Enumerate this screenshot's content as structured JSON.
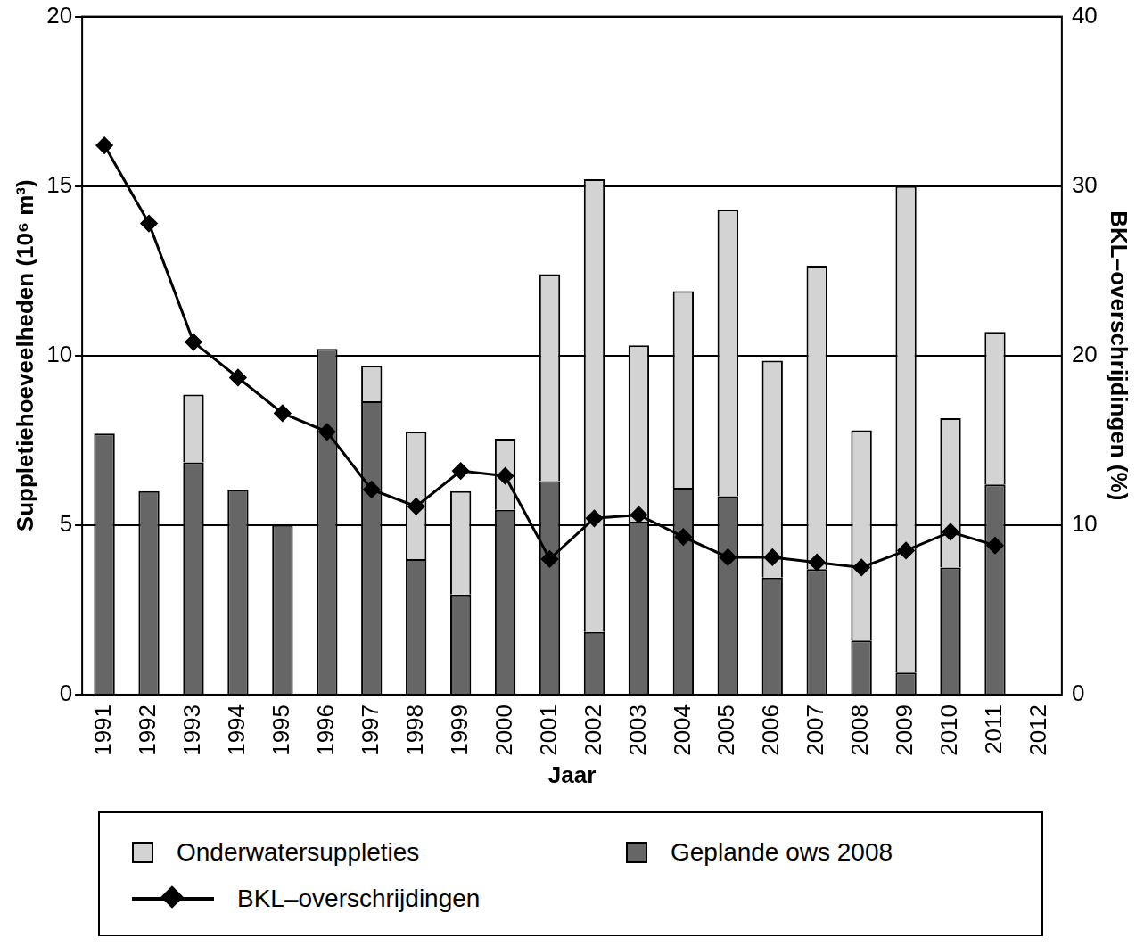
{
  "chart_data": {
    "type": "bar",
    "stacked": true,
    "grid": true,
    "x_label": "Jaar",
    "y_label": "Suppletiehoeveelheden (10⁶ m³)",
    "y2_label": "BKL–overschrijdingen (%)",
    "categories": [
      "1991",
      "1992",
      "1993",
      "1994",
      "1995",
      "1996",
      "1997",
      "1998",
      "1999",
      "2000",
      "2001",
      "2002",
      "2003",
      "2004",
      "2005",
      "2006",
      "2007",
      "2008",
      "2009",
      "2010",
      "2011",
      "2012"
    ],
    "ylim": [
      0,
      20
    ],
    "yticks": [
      0,
      5,
      10,
      15,
      20
    ],
    "y2lim": [
      0,
      40
    ],
    "y2ticks": [
      0,
      10,
      20,
      30,
      40
    ],
    "series": [
      {
        "name": "Geplande ows 2008",
        "type": "bar",
        "color": "#666666",
        "values": [
          7.7,
          6.0,
          6.85,
          6.05,
          5.0,
          10.2,
          8.65,
          4.0,
          2.95,
          5.45,
          6.3,
          1.85,
          5.1,
          6.1,
          5.85,
          3.45,
          3.7,
          1.6,
          0.65,
          3.75,
          6.2,
          null
        ]
      },
      {
        "name": "Onderwatersuppleties",
        "type": "bar",
        "color": "#d3d3d3",
        "values": [
          0,
          0,
          2.0,
          0,
          0,
          0,
          1.05,
          3.75,
          3.05,
          2.1,
          6.1,
          13.35,
          5.2,
          5.8,
          8.45,
          6.4,
          8.95,
          6.2,
          14.35,
          4.4,
          4.5,
          null
        ]
      },
      {
        "name": "BKL–overschrijdingen",
        "type": "line",
        "axis": "y2",
        "color": "#000000",
        "marker": "diamond",
        "values": [
          32.4,
          27.8,
          20.8,
          18.7,
          16.6,
          15.5,
          12.1,
          11.1,
          13.2,
          12.9,
          8.0,
          10.4,
          10.6,
          9.3,
          8.1,
          8.1,
          7.8,
          7.5,
          8.5,
          9.6,
          8.8,
          null
        ]
      }
    ],
    "legend_order": [
      "Onderwatersuppleties",
      "Geplande ows 2008",
      "BKL–overschrijdingen"
    ]
  }
}
